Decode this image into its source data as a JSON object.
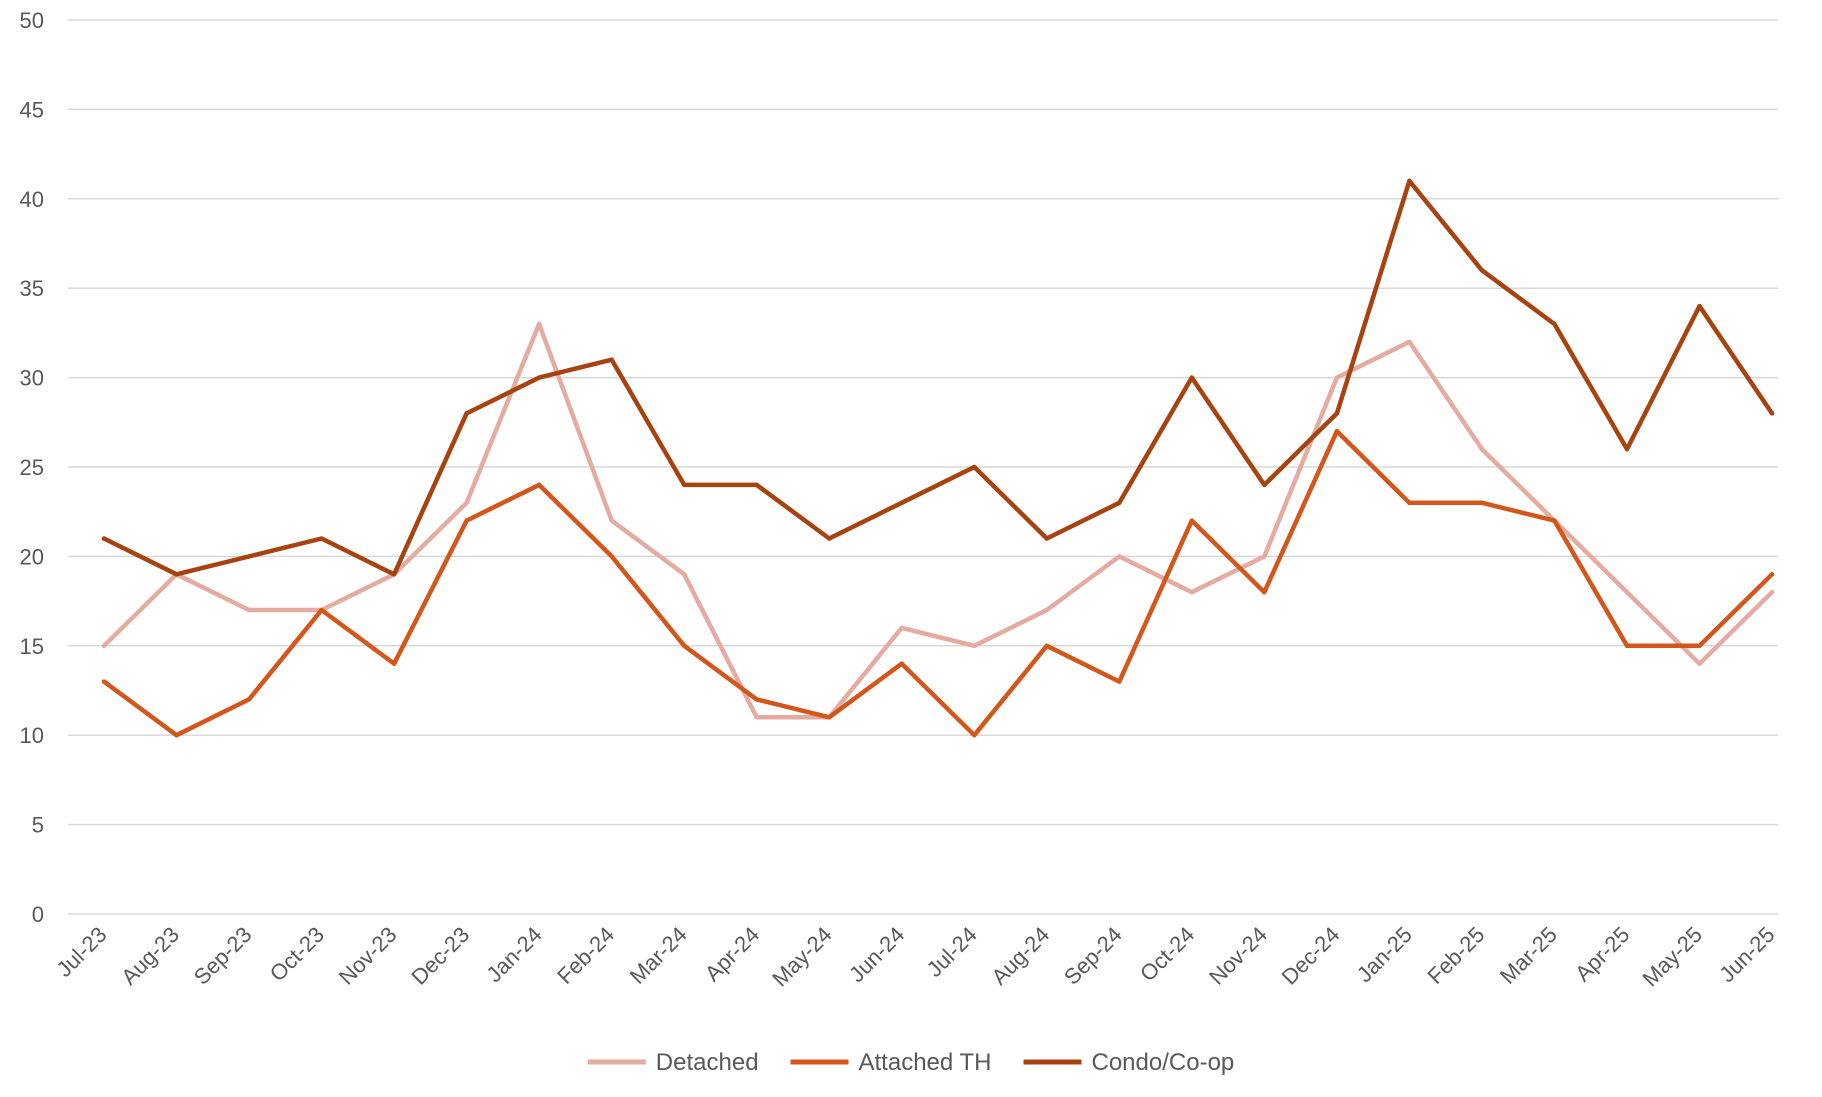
{
  "chart_data": {
    "type": "line",
    "title": "",
    "xlabel": "",
    "ylabel": "",
    "ylim": [
      0,
      50
    ],
    "yticks": [
      0,
      5,
      10,
      15,
      20,
      25,
      30,
      35,
      40,
      45,
      50
    ],
    "grid": "horizontal",
    "legend_position": "bottom-center",
    "categories": [
      "Jul-23",
      "Aug-23",
      "Sep-23",
      "Oct-23",
      "Nov-23",
      "Dec-23",
      "Jan-24",
      "Feb-24",
      "Mar-24",
      "Apr-24",
      "May-24",
      "Jun-24",
      "Jul-24",
      "Aug-24",
      "Sep-24",
      "Oct-24",
      "Nov-24",
      "Dec-24",
      "Jan-25",
      "Feb-25",
      "Mar-25",
      "Apr-25",
      "May-25",
      "Jun-25"
    ],
    "series": [
      {
        "name": "Detached",
        "color": "#e6aba0",
        "values": [
          15,
          19,
          17,
          17,
          19,
          23,
          33,
          22,
          19,
          11,
          11,
          16,
          15,
          17,
          20,
          18,
          20,
          30,
          32,
          26,
          22,
          18,
          14,
          18
        ]
      },
      {
        "name": "Attached TH",
        "color": "#d4561a",
        "values": [
          13,
          10,
          12,
          17,
          14,
          22,
          24,
          20,
          15,
          12,
          11,
          14,
          10,
          15,
          13,
          22,
          18,
          27,
          23,
          23,
          22,
          15,
          15,
          19
        ]
      },
      {
        "name": "Condo/Co-op",
        "color": "#a8420f",
        "values": [
          21,
          19,
          20,
          21,
          19,
          28,
          30,
          31,
          24,
          24,
          21,
          23,
          25,
          21,
          23,
          30,
          24,
          28,
          41,
          36,
          33,
          26,
          34,
          28
        ]
      }
    ]
  }
}
